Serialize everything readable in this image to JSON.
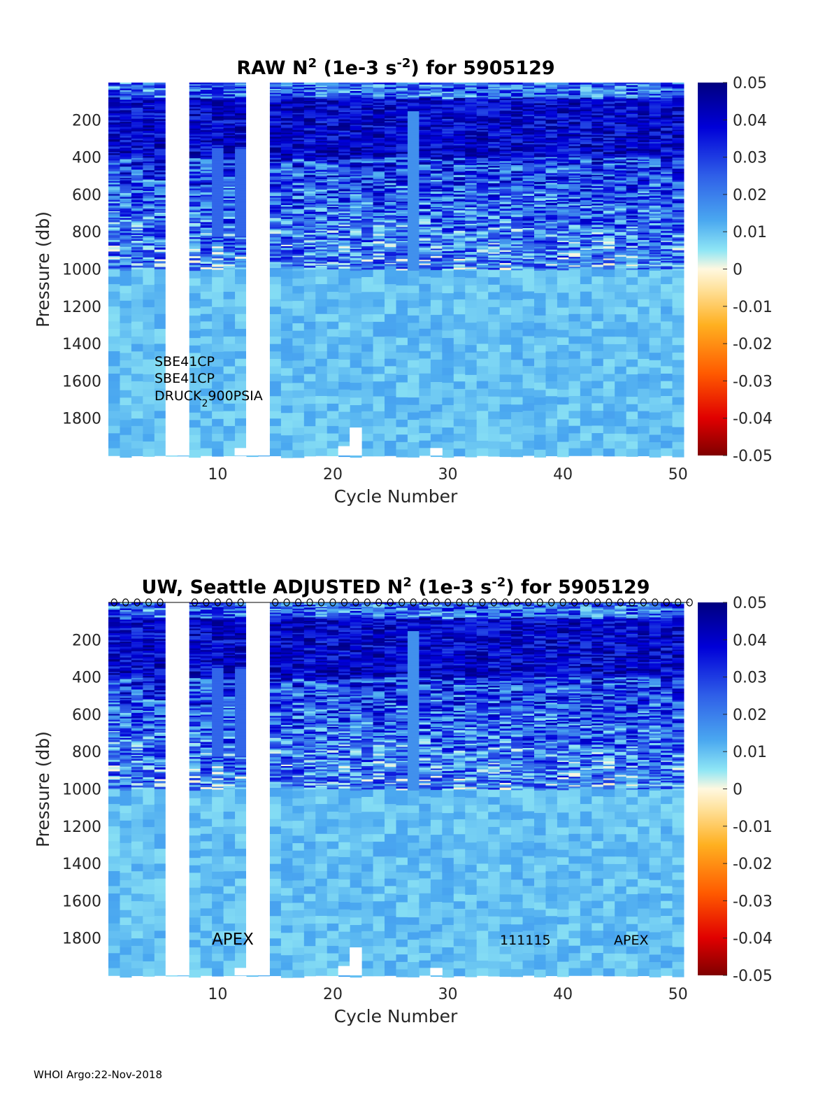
{
  "footer": "WHOI Argo:22-Nov-2018",
  "chart_data": [
    {
      "type": "heatmap",
      "title_parts": {
        "a": "RAW N",
        "sup1": "2",
        "b": " (1e-3 s",
        "sup2": "-2",
        "c": ") for 5905129"
      },
      "xlabel": "Cycle Number",
      "ylabel": "Pressure (db)",
      "xlim": [
        1,
        51
      ],
      "ylim": [
        0,
        2000
      ],
      "xticks": [
        10,
        20,
        30,
        40,
        50
      ],
      "yticks": [
        200,
        400,
        600,
        800,
        1000,
        1200,
        1400,
        1600,
        1800
      ],
      "colorbar": {
        "range": [
          -0.05,
          0.05
        ],
        "ticks": [
          "0.05",
          "0.04",
          "0.03",
          "0.02",
          "0.01",
          "0",
          "-0.01",
          "-0.02",
          "-0.03",
          "-0.04",
          "-0.05"
        ]
      },
      "missing_cycles": [
        6,
        7,
        13,
        14
      ],
      "shallow_profile_cycles": [
        {
          "cycle": 21,
          "max_pressure": 1950
        },
        {
          "cycle": 22,
          "max_pressure": 1850
        },
        {
          "cycle": 29,
          "max_pressure": 1960
        },
        {
          "cycle": 12,
          "max_pressure": 1960
        }
      ],
      "annotations": [
        "SBE41CP",
        "SBE41CP",
        "DRUCK"
      ],
      "druck_sub": "2",
      "druck_rest": "900PSIA"
    },
    {
      "type": "heatmap",
      "title_parts": {
        "a": "UW, Seattle  ADJUSTED N",
        "sup1": "2",
        "b": " (1e-3 s",
        "sup2": "-2",
        "c": ") for 5905129"
      },
      "xlabel": "Cycle Number",
      "ylabel": "Pressure (db)",
      "xlim": [
        1,
        51
      ],
      "ylim": [
        0,
        2000
      ],
      "xticks": [
        10,
        20,
        30,
        40,
        50
      ],
      "yticks": [
        200,
        400,
        600,
        800,
        1000,
        1200,
        1400,
        1600,
        1800
      ],
      "colorbar": {
        "range": [
          -0.05,
          0.05
        ],
        "ticks": [
          "0.05",
          "0.04",
          "0.03",
          "0.02",
          "0.01",
          "0",
          "-0.01",
          "-0.02",
          "-0.03",
          "-0.04",
          "-0.05"
        ]
      },
      "missing_cycles": [
        6,
        7,
        13,
        14
      ],
      "qc_marker": "o",
      "annotations": [
        "APEX",
        "111115",
        "APEX"
      ]
    }
  ]
}
